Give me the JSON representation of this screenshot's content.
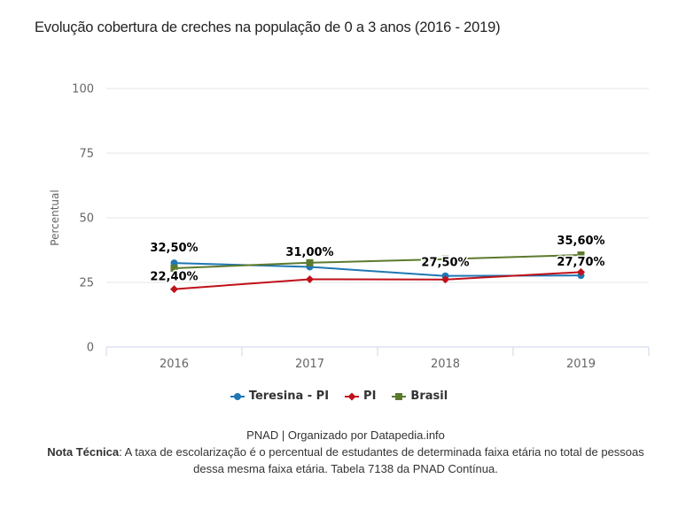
{
  "chart_data": {
    "type": "line",
    "title": "Evolução cobertura de creches na população de 0 a 3 anos (2016 - 2019)",
    "xlabel": "",
    "ylabel": "Percentual",
    "categories": [
      "2016",
      "2017",
      "2018",
      "2019"
    ],
    "ylim": [
      0,
      100
    ],
    "yticks": [
      0,
      25,
      50,
      75,
      100
    ],
    "ytick_labels": [
      "0",
      "25",
      "50",
      "75",
      "100"
    ],
    "grid": true,
    "legend_position": "bottom",
    "series": [
      {
        "name": "Teresina - PI",
        "color": "#1f77b4",
        "marker": "circle",
        "values": [
          32.5,
          31.0,
          27.5,
          27.7
        ],
        "labels": [
          "32,50%",
          "31,00%",
          "27,50%",
          "27,70%"
        ]
      },
      {
        "name": "PI",
        "color": "#c0101a",
        "marker": "diamond",
        "values": [
          22.4,
          26.2,
          26.1,
          29.0
        ],
        "labels": [
          "22,40%",
          null,
          null,
          null
        ]
      },
      {
        "name": "Brasil",
        "color": "#5c7a2e",
        "marker": "square",
        "values": [
          30.5,
          32.6,
          34.0,
          35.6
        ],
        "labels": [
          null,
          null,
          null,
          "35,60%"
        ]
      }
    ]
  },
  "footer": {
    "source": "PNAD | Organizado por Datapedia.info",
    "note_label": "Nota Técnica",
    "note_text": ": A taxa de escolarização é o percentual de estudantes de determinada faixa etária no total de pessoas dessa mesma faixa etária. Tabela 7138 da PNAD Contínua."
  }
}
